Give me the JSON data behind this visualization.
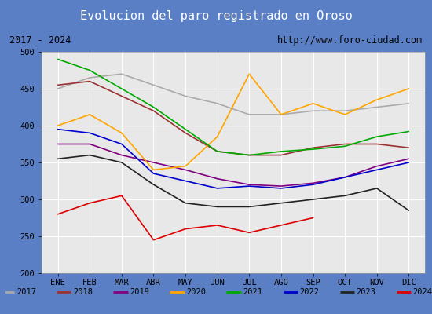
{
  "title": "Evolucion del paro registrado en Oroso",
  "subtitle_left": "2017 - 2024",
  "subtitle_right": "http://www.foro-ciudad.com",
  "xlabel_months": [
    "ENE",
    "FEB",
    "MAR",
    "ABR",
    "MAY",
    "JUN",
    "JUL",
    "AGO",
    "SEP",
    "OCT",
    "NOV",
    "DIC"
  ],
  "ylim": [
    200,
    500
  ],
  "yticks": [
    200,
    250,
    300,
    350,
    400,
    450,
    500
  ],
  "series": {
    "2017": {
      "color": "#aaaaaa",
      "data": [
        450,
        465,
        470,
        455,
        440,
        430,
        415,
        415,
        420,
        420,
        425,
        430
      ]
    },
    "2018": {
      "color": "#993333",
      "data": [
        455,
        460,
        440,
        420,
        390,
        365,
        360,
        360,
        370,
        375,
        375,
        370
      ]
    },
    "2019": {
      "color": "#800080",
      "data": [
        375,
        375,
        360,
        350,
        340,
        328,
        320,
        318,
        322,
        330,
        345,
        355
      ]
    },
    "2020": {
      "color": "#ffa500",
      "data": [
        400,
        415,
        390,
        340,
        345,
        385,
        470,
        415,
        430,
        415,
        435,
        450
      ]
    },
    "2021": {
      "color": "#00aa00",
      "data": [
        490,
        475,
        450,
        425,
        395,
        365,
        360,
        365,
        368,
        372,
        385,
        392
      ]
    },
    "2022": {
      "color": "#0000cc",
      "data": [
        395,
        390,
        375,
        335,
        325,
        315,
        318,
        315,
        320,
        330,
        340,
        350
      ]
    },
    "2023": {
      "color": "#222222",
      "data": [
        355,
        360,
        350,
        320,
        295,
        290,
        290,
        295,
        300,
        305,
        315,
        285
      ]
    },
    "2024": {
      "color": "#dd0000",
      "data": [
        280,
        295,
        305,
        245,
        260,
        265,
        255,
        265,
        275,
        null,
        null,
        null
      ]
    }
  },
  "title_bg_color": "#5b7fc4",
  "title_text_color": "#ffffff",
  "plot_bg_color": "#e8e8e8",
  "border_color": "#5b7fc4",
  "grid_color": "#ffffff",
  "legend_colors": {
    "2017": "#aaaaaa",
    "2018": "#993333",
    "2019": "#800080",
    "2020": "#ffa500",
    "2021": "#00aa00",
    "2022": "#0000cc",
    "2023": "#222222",
    "2024": "#dd0000"
  }
}
